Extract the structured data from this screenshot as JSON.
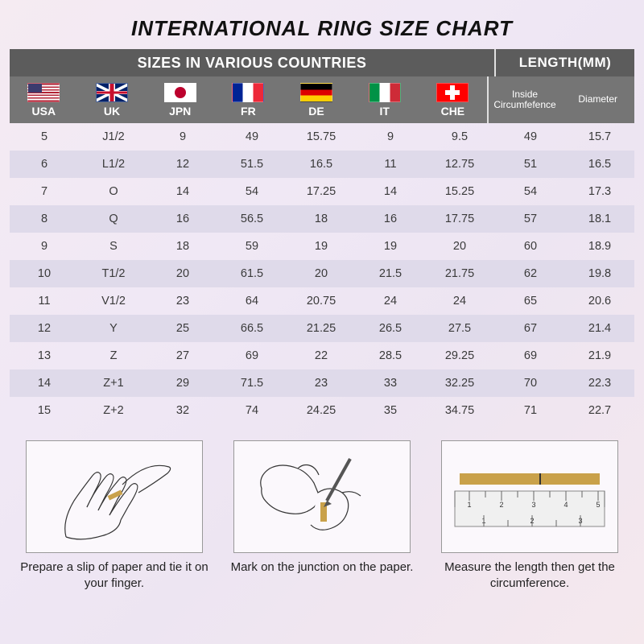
{
  "title": "INTERNATIONAL RING SIZE CHART",
  "band": {
    "left": "SIZES IN VARIOUS COUNTRIES",
    "right": "LENGTH(MM)"
  },
  "countries": [
    {
      "code": "USA",
      "flagClass": "flag-usa"
    },
    {
      "code": "UK",
      "flagClass": "flag-uk"
    },
    {
      "code": "JPN",
      "flagClass": "flag-jpn"
    },
    {
      "code": "FR",
      "flagClass": "flag-fr"
    },
    {
      "code": "DE",
      "flagClass": "flag-de"
    },
    {
      "code": "IT",
      "flagClass": "flag-it"
    },
    {
      "code": "CHE",
      "flagClass": "flag-che"
    }
  ],
  "lengthHeaders": [
    "Inside Circumfefence",
    "Diameter"
  ],
  "rows": [
    [
      "5",
      "J1/2",
      "9",
      "49",
      "15.75",
      "9",
      "9.5",
      "49",
      "15.7"
    ],
    [
      "6",
      "L1/2",
      "12",
      "51.5",
      "16.5",
      "11",
      "12.75",
      "51",
      "16.5"
    ],
    [
      "7",
      "O",
      "14",
      "54",
      "17.25",
      "14",
      "15.25",
      "54",
      "17.3"
    ],
    [
      "8",
      "Q",
      "16",
      "56.5",
      "18",
      "16",
      "17.75",
      "57",
      "18.1"
    ],
    [
      "9",
      "S",
      "18",
      "59",
      "19",
      "19",
      "20",
      "60",
      "18.9"
    ],
    [
      "10",
      "T1/2",
      "20",
      "61.5",
      "20",
      "21.5",
      "21.75",
      "62",
      "19.8"
    ],
    [
      "11",
      "V1/2",
      "23",
      "64",
      "20.75",
      "24",
      "24",
      "65",
      "20.6"
    ],
    [
      "12",
      "Y",
      "25",
      "66.5",
      "21.25",
      "26.5",
      "27.5",
      "67",
      "21.4"
    ],
    [
      "13",
      "Z",
      "27",
      "69",
      "22",
      "28.5",
      "29.25",
      "69",
      "21.9"
    ],
    [
      "14",
      "Z+1",
      "29",
      "71.5",
      "23",
      "33",
      "32.25",
      "70",
      "22.3"
    ],
    [
      "15",
      "Z+2",
      "32",
      "74",
      "24.25",
      "35",
      "34.75",
      "71",
      "22.7"
    ]
  ],
  "instructions": [
    "Prepare a slip of paper and tie it on your finger.",
    "Mark on the junction on the paper.",
    "Measure the length then get the circumference."
  ],
  "styling": {
    "header_bg": "#5c5c5c",
    "subheader_bg": "#757575",
    "row_alt_bg": "#dfdaea",
    "text_color": "#3a3a3a",
    "title_fontsize": 26,
    "cell_fontsize": 14.5,
    "page_bg_gradient": [
      "#f5ebf2",
      "#f0e8f5",
      "#ede5f2",
      "#f5e8ed"
    ],
    "separator_after_col": 7
  }
}
